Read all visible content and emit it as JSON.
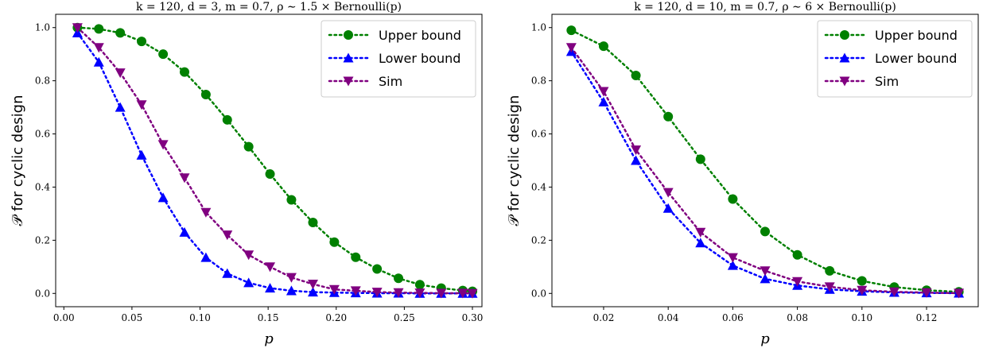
{
  "chart_data": [
    {
      "type": "line",
      "title": "k = 120, d = 3, m = 0.7, ρ ∼ 1.5 × Bernoulli(p)",
      "xlabel": "p",
      "ylabel": "𝒫 for cyclic design",
      "xlim": [
        -0.006,
        0.307
      ],
      "ylim": [
        -0.05,
        1.05
      ],
      "xticks": [
        0.0,
        0.05,
        0.1,
        0.15,
        0.2,
        0.25,
        0.3
      ],
      "xtick_labels": [
        "0.00",
        "0.05",
        "0.10",
        "0.15",
        "0.20",
        "0.25",
        "0.30"
      ],
      "yticks": [
        0.0,
        0.2,
        0.4,
        0.6,
        0.8,
        1.0
      ],
      "ytick_labels": [
        "0.0",
        "0.2",
        "0.4",
        "0.6",
        "0.8",
        "1.0"
      ],
      "legend_position": "top-right",
      "x": [
        0.01,
        0.0257,
        0.0414,
        0.0571,
        0.0729,
        0.0886,
        0.1043,
        0.12,
        0.1357,
        0.1514,
        0.1671,
        0.1829,
        0.1986,
        0.2143,
        0.23,
        0.2457,
        0.2614,
        0.2771,
        0.2929,
        0.3
      ],
      "series": [
        {
          "name": "Upper bound",
          "marker": "circle",
          "color": "#008000",
          "values": [
            1.0,
            0.995,
            0.98,
            0.948,
            0.9,
            0.833,
            0.748,
            0.653,
            0.552,
            0.449,
            0.352,
            0.267,
            0.193,
            0.136,
            0.092,
            0.057,
            0.033,
            0.02,
            0.011,
            0.008
          ]
        },
        {
          "name": "Lower bound",
          "marker": "triangle-up",
          "color": "#0000ff",
          "values": [
            0.98,
            0.87,
            0.7,
            0.52,
            0.36,
            0.23,
            0.135,
            0.075,
            0.04,
            0.02,
            0.01,
            0.005,
            0.003,
            0.002,
            0.001,
            0.001,
            0.0,
            0.0,
            0.0,
            0.0
          ]
        },
        {
          "name": "Sim",
          "marker": "triangle-down",
          "color": "#800080",
          "values": [
            1.0,
            0.925,
            0.83,
            0.71,
            0.56,
            0.435,
            0.305,
            0.22,
            0.145,
            0.1,
            0.06,
            0.035,
            0.015,
            0.01,
            0.005,
            0.003,
            0.002,
            0.001,
            0.001,
            0.0
          ]
        }
      ]
    },
    {
      "type": "line",
      "title": "k = 120, d = 10, m = 0.7, ρ ∼ 6 × Bernoulli(p)",
      "xlabel": "p",
      "ylabel": "𝒫 for cyclic design",
      "xlim": [
        0.004,
        0.136
      ],
      "ylim": [
        -0.05,
        1.05
      ],
      "xticks": [
        0.02,
        0.04,
        0.06,
        0.08,
        0.1,
        0.12
      ],
      "xtick_labels": [
        "0.02",
        "0.04",
        "0.06",
        "0.08",
        "0.10",
        "0.12"
      ],
      "yticks": [
        0.0,
        0.2,
        0.4,
        0.6,
        0.8,
        1.0
      ],
      "ytick_labels": [
        "0.0",
        "0.2",
        "0.4",
        "0.6",
        "0.8",
        "1.0"
      ],
      "legend_position": "top-right",
      "x": [
        0.01,
        0.02,
        0.03,
        0.04,
        0.05,
        0.06,
        0.07,
        0.08,
        0.09,
        0.1,
        0.11,
        0.12,
        0.13
      ],
      "series": [
        {
          "name": "Upper bound",
          "marker": "circle",
          "color": "#008000",
          "values": [
            0.99,
            0.93,
            0.82,
            0.665,
            0.505,
            0.355,
            0.233,
            0.145,
            0.085,
            0.047,
            0.024,
            0.012,
            0.006
          ]
        },
        {
          "name": "Lower bound",
          "marker": "triangle-up",
          "color": "#0000ff",
          "values": [
            0.91,
            0.72,
            0.5,
            0.32,
            0.19,
            0.105,
            0.055,
            0.03,
            0.015,
            0.008,
            0.004,
            0.002,
            0.001
          ]
        },
        {
          "name": "Sim",
          "marker": "triangle-down",
          "color": "#800080",
          "values": [
            0.925,
            0.76,
            0.54,
            0.38,
            0.23,
            0.135,
            0.085,
            0.045,
            0.025,
            0.012,
            0.006,
            0.003,
            0.001
          ]
        }
      ]
    }
  ]
}
